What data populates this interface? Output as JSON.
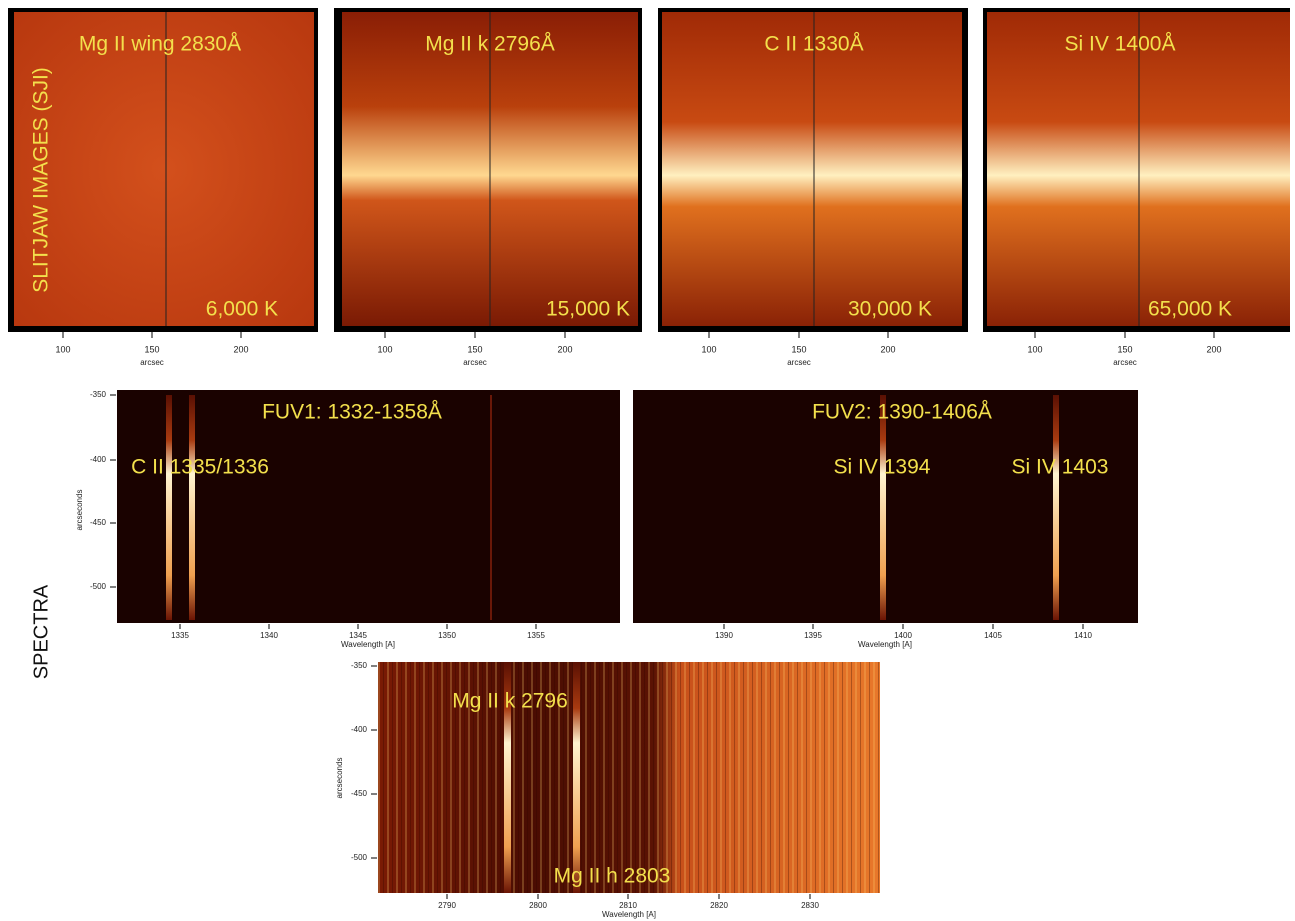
{
  "side_labels": {
    "sji": "SLITJAW IMAGES (SJI)",
    "spectra": "SPECTRA"
  },
  "sji_panels": [
    {
      "title": "Mg II wing 2830Å",
      "temperature": "6,000 K",
      "xticks": [
        100,
        150,
        200
      ],
      "xlabel": "arcsec"
    },
    {
      "title": "Mg II k 2796Å",
      "temperature": "15,000 K",
      "xticks": [
        100,
        150,
        200
      ],
      "xlabel": "arcsec"
    },
    {
      "title": "C II 1330Å",
      "temperature": "30,000 K",
      "xticks": [
        100,
        150,
        200
      ],
      "xlabel": "arcsec"
    },
    {
      "title": "Si IV 1400Å",
      "temperature": "65,000 K",
      "xticks": [
        100,
        150,
        200
      ],
      "xlabel": "arcsec"
    }
  ],
  "spectra_panels": [
    {
      "title": "FUV1: 1332-1358Å",
      "lines": [
        "C II 1335/1336"
      ],
      "xticks": [
        1335,
        1340,
        1345,
        1350,
        1355
      ],
      "yticks": [
        -350,
        -400,
        -450,
        -500
      ],
      "xlabel": "Wavelength [A]",
      "ylabel": "arcseconds"
    },
    {
      "title": "FUV2: 1390-1406Å",
      "lines": [
        "Si IV 1394",
        "Si IV 1403"
      ],
      "xticks": [
        1390,
        1395,
        1400,
        1405,
        1410
      ],
      "xlabel": "Wavelength [A]"
    },
    {
      "lines": [
        "Mg II k 2796",
        "Mg II h 2803"
      ],
      "xticks": [
        2790,
        2800,
        2810,
        2820,
        2830
      ],
      "yticks": [
        -350,
        -400,
        -450,
        -500
      ],
      "xlabel": "Wavelength [A]",
      "ylabel": "arcseconds"
    }
  ]
}
